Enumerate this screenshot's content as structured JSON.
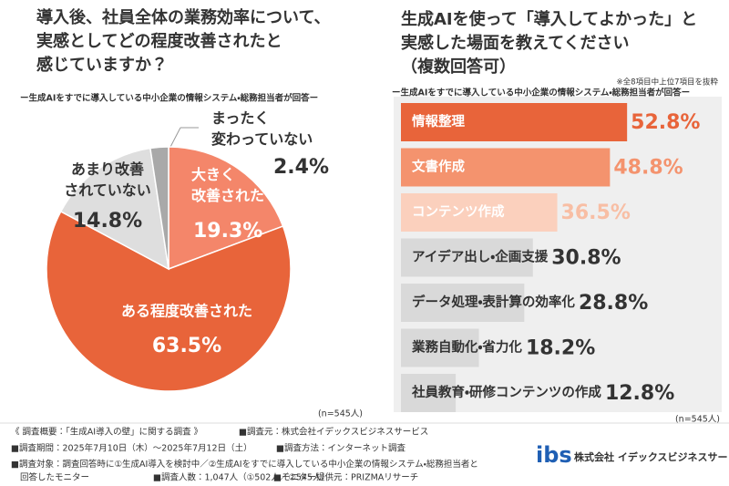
{
  "chart_data": [
    {
      "type": "pie",
      "title": "導入後、社員全体の業務効率について、\n実感としてどの程度改善されたと\n感じていますか？",
      "subtitle": "ー生成AIをすでに導入している中小企業の情報システム・総務担当者が回答ー",
      "categories": [
        "大きく\n改善された",
        "ある程度改善された",
        "あまり改善\nされていない",
        "まったく\n変わっていない"
      ],
      "values": [
        19.3,
        63.5,
        14.8,
        2.4
      ],
      "value_labels": [
        "19.3%",
        "63.5%",
        "14.8%",
        "2.4%"
      ],
      "colors": [
        "#f4866a",
        "#e8643a",
        "#dedede",
        "#a9a9a9"
      ],
      "note": "(n=545人)"
    },
    {
      "type": "bar",
      "orientation": "horizontal",
      "title": "生成AIを使って「導入してよかった」と\n実感した場面を教えてください\n（複数回答可）",
      "annotation": "※全8項目中上位7項目を抜粋",
      "subtitle": "ー生成AIをすでに導入している中小企業の情報システム・総務担当者が回答ー",
      "categories": [
        "情報整理",
        "文書作成",
        "コンテンツ作成",
        "アイデア出し・企画支援",
        "データ処理・表計算の効率化",
        "業務自動化・省力化",
        "社員教育・研修コンテンツの作成"
      ],
      "values": [
        52.8,
        48.8,
        36.5,
        30.8,
        28.8,
        18.2,
        12.8
      ],
      "value_labels": [
        "52.8%",
        "48.8%",
        "36.5%",
        "30.8%",
        "28.8%",
        "18.2%",
        "12.8%"
      ],
      "colors": [
        "#e8643a",
        "#f4936e",
        "#fbd0bd",
        "#d9d9d9",
        "#d9d9d9",
        "#d9d9d9",
        "#d9d9d9"
      ],
      "value_label_colors": [
        "#e8643a",
        "#f4936e",
        "#f8bea4",
        "#333333",
        "#333333",
        "#333333",
        "#333333"
      ],
      "xlim": [
        0,
        100
      ],
      "note": "(n=545人)"
    }
  ],
  "footer": {
    "summary": "《 調査概要：「生成AI導入の壁」に関する調査 》",
    "source": "■調査元：株式会社イデックスビジネスサービス",
    "period": "■調査期間：2025年7月10日（木）～2025年7月12日（土）",
    "method": "■調査方法：インターネット調査",
    "target": "■調査対象：調査回答時に①生成AI導入を検討中／②生成AIをすでに導入している中小企業の情報システム・総務担当者と\n回答したモニター",
    "count": "■調査人数：1,047人（①502人／②545人）",
    "provider": "■モニター提供元：PRIZMAリサーチ",
    "logo": "ibs",
    "company": "株式会社 イデックスビジネスサービス"
  }
}
